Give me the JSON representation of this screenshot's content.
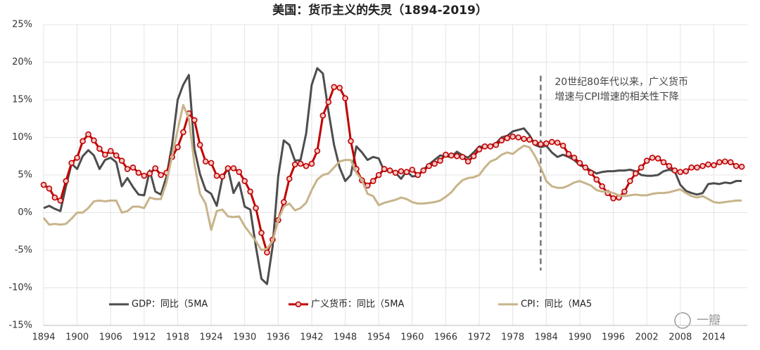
{
  "chart_data": {
    "type": "line",
    "title": "美国：货币主义的失灵（1894-2019）",
    "x": [
      1894,
      1895,
      1896,
      1897,
      1898,
      1899,
      1900,
      1901,
      1902,
      1903,
      1904,
      1905,
      1906,
      1907,
      1908,
      1909,
      1910,
      1911,
      1912,
      1913,
      1914,
      1915,
      1916,
      1917,
      1918,
      1919,
      1920,
      1921,
      1922,
      1923,
      1924,
      1925,
      1926,
      1927,
      1928,
      1929,
      1930,
      1931,
      1932,
      1933,
      1934,
      1935,
      1936,
      1937,
      1938,
      1939,
      1940,
      1941,
      1942,
      1943,
      1944,
      1945,
      1946,
      1947,
      1948,
      1949,
      1950,
      1951,
      1952,
      1953,
      1954,
      1955,
      1956,
      1957,
      1958,
      1959,
      1960,
      1961,
      1962,
      1963,
      1964,
      1965,
      1966,
      1967,
      1968,
      1969,
      1970,
      1971,
      1972,
      1973,
      1974,
      1975,
      1976,
      1977,
      1978,
      1979,
      1980,
      1981,
      1982,
      1983,
      1984,
      1985,
      1986,
      1987,
      1988,
      1989,
      1990,
      1991,
      1992,
      1993,
      1994,
      1995,
      1996,
      1997,
      1998,
      1999,
      2000,
      2001,
      2002,
      2003,
      2004,
      2005,
      2006,
      2007,
      2008,
      2009,
      2010,
      2011,
      2012,
      2013,
      2014,
      2015,
      2016,
      2017,
      2018,
      2019
    ],
    "series": [
      {
        "name": "GDP：同比（5MA",
        "color": "#4d4d4d",
        "marker": false,
        "values": [
          0.6,
          0.9,
          0.5,
          0.2,
          3.5,
          6.5,
          5.8,
          7.5,
          8.3,
          7.6,
          5.8,
          7.0,
          7.3,
          6.7,
          3.5,
          4.6,
          3.4,
          2.4,
          2.3,
          5.6,
          2.8,
          2.4,
          4.8,
          9.0,
          15.0,
          17.0,
          18.3,
          8.5,
          5.1,
          3.0,
          2.5,
          0.9,
          4.6,
          5.9,
          2.6,
          4.0,
          0.8,
          0.4,
          -4.5,
          -8.8,
          -9.5,
          -4.5,
          4.8,
          9.6,
          9.0,
          6.9,
          7.0,
          10.5,
          17.0,
          19.2,
          18.5,
          13.5,
          9.0,
          6.0,
          4.2,
          5.0,
          8.8,
          8.0,
          7.0,
          7.4,
          7.2,
          5.5,
          5.7,
          5.3,
          4.5,
          5.5,
          4.8,
          4.9,
          5.7,
          6.4,
          7.0,
          7.6,
          7.5,
          7.4,
          8.1,
          7.6,
          7.3,
          8.0,
          8.8,
          8.7,
          8.9,
          9.2,
          10.0,
          10.2,
          10.8,
          11.0,
          11.2,
          10.3,
          9.0,
          8.7,
          8.9,
          8.0,
          7.4,
          7.7,
          7.4,
          7.0,
          6.3,
          6.0,
          5.6,
          5.2,
          5.4,
          5.5,
          5.5,
          5.6,
          5.6,
          5.7,
          5.5,
          5.0,
          4.9,
          4.9,
          5.0,
          5.5,
          5.7,
          5.5,
          3.7,
          2.9,
          2.6,
          2.4,
          2.6,
          3.8,
          3.9,
          3.8,
          4.0,
          3.9,
          4.2,
          4.2
        ]
      },
      {
        "name": "广义货币：同比（5MA",
        "color": "#c00000",
        "marker": true,
        "values": [
          3.7,
          3.2,
          2.0,
          1.6,
          4.2,
          6.6,
          7.3,
          9.5,
          10.4,
          9.6,
          8.5,
          7.7,
          8.2,
          7.6,
          6.9,
          5.8,
          6.0,
          5.3,
          4.9,
          5.2,
          5.9,
          5.0,
          5.3,
          7.4,
          8.7,
          10.7,
          13.2,
          12.3,
          9.0,
          6.8,
          6.6,
          4.9,
          4.8,
          5.9,
          5.9,
          5.4,
          4.2,
          2.8,
          0.6,
          -2.7,
          -5.3,
          -3.6,
          -1.0,
          1.4,
          4.5,
          6.4,
          6.5,
          6.2,
          6.5,
          8.2,
          12.9,
          14.7,
          16.7,
          16.6,
          15.2,
          9.5,
          5.8,
          4.3,
          3.6,
          4.2,
          5.0,
          5.8,
          5.6,
          5.3,
          5.5,
          5.4,
          5.7,
          5.0,
          5.6,
          6.2,
          6.5,
          6.9,
          7.7,
          7.6,
          7.5,
          7.4,
          6.8,
          7.5,
          8.4,
          8.8,
          8.8,
          9.0,
          9.6,
          9.9,
          10.1,
          10.0,
          9.8,
          9.7,
          9.3,
          9.1,
          9.2,
          9.4,
          9.3,
          8.9,
          7.8,
          7.3,
          6.6,
          6.0,
          5.3,
          4.4,
          3.5,
          2.6,
          1.9,
          2.0,
          2.8,
          4.2,
          5.2,
          6.0,
          6.9,
          7.3,
          7.2,
          6.7,
          6.2,
          5.6,
          5.4,
          5.5,
          6.0,
          6.0,
          6.2,
          6.4,
          6.3,
          6.7,
          6.8,
          6.7,
          6.2,
          6.1
        ]
      },
      {
        "name": "CPI：同比（MA5",
        "color": "#c8b48a",
        "marker": false,
        "values": [
          -0.7,
          -1.6,
          -1.5,
          -1.6,
          -1.5,
          -0.8,
          0.0,
          0.0,
          0.6,
          1.5,
          1.6,
          1.5,
          1.6,
          1.6,
          0.0,
          0.2,
          0.8,
          0.8,
          0.6,
          2.0,
          1.8,
          1.8,
          4.0,
          7.5,
          11.0,
          14.3,
          12.5,
          6.5,
          2.5,
          1.2,
          -2.3,
          0.2,
          0.4,
          -0.5,
          -0.6,
          -0.5,
          -1.8,
          -2.8,
          -3.8,
          -5.0,
          -4.8,
          -3.8,
          -1.0,
          0.8,
          1.2,
          0.3,
          0.6,
          1.3,
          3.0,
          4.4,
          5.0,
          5.2,
          6.0,
          6.8,
          7.0,
          7.0,
          5.3,
          4.3,
          2.5,
          2.2,
          1.0,
          1.3,
          1.5,
          1.7,
          2.0,
          1.8,
          1.4,
          1.2,
          1.2,
          1.3,
          1.4,
          1.6,
          2.1,
          2.7,
          3.6,
          4.3,
          4.6,
          4.7,
          5.0,
          6.0,
          6.8,
          7.1,
          7.7,
          8.0,
          7.8,
          8.4,
          8.9,
          8.7,
          7.5,
          6.0,
          4.2,
          3.5,
          3.3,
          3.3,
          3.6,
          4.0,
          4.2,
          3.9,
          3.6,
          3.0,
          2.8,
          2.8,
          2.6,
          2.3,
          2.2,
          2.3,
          2.4,
          2.3,
          2.3,
          2.5,
          2.6,
          2.6,
          2.7,
          2.9,
          3.1,
          2.6,
          2.2,
          2.0,
          2.2,
          1.8,
          1.4,
          1.3,
          1.4,
          1.5,
          1.6,
          1.6
        ]
      }
    ],
    "xlim": [
      1894,
      2020
    ],
    "xticks": [
      1894,
      1900,
      1906,
      1912,
      1918,
      1924,
      1930,
      1936,
      1942,
      1948,
      1954,
      1960,
      1966,
      1972,
      1978,
      1984,
      1990,
      1996,
      2002,
      2008,
      2014
    ],
    "ylim": [
      -15,
      25
    ],
    "yticks": [
      {
        "value": 25,
        "label": "25%"
      },
      {
        "value": 20,
        "label": "20%"
      },
      {
        "value": 15,
        "label": "15%"
      },
      {
        "value": 10,
        "label": "10%"
      },
      {
        "value": 5,
        "label": "5%"
      },
      {
        "value": 0,
        "label": "0%"
      },
      {
        "value": -5,
        "label": "-5%"
      },
      {
        "value": -10,
        "label": "-10%"
      },
      {
        "value": -15,
        "label": "-15%"
      }
    ],
    "grid": true,
    "legend": "bottom",
    "annotation": {
      "lines": [
        "20世纪80年代以来，广义货币",
        "增速与CPI增速的相关性下降"
      ],
      "x": 1983,
      "y": [
        18.2,
        -7.7
      ]
    },
    "watermark": "一瓣"
  }
}
